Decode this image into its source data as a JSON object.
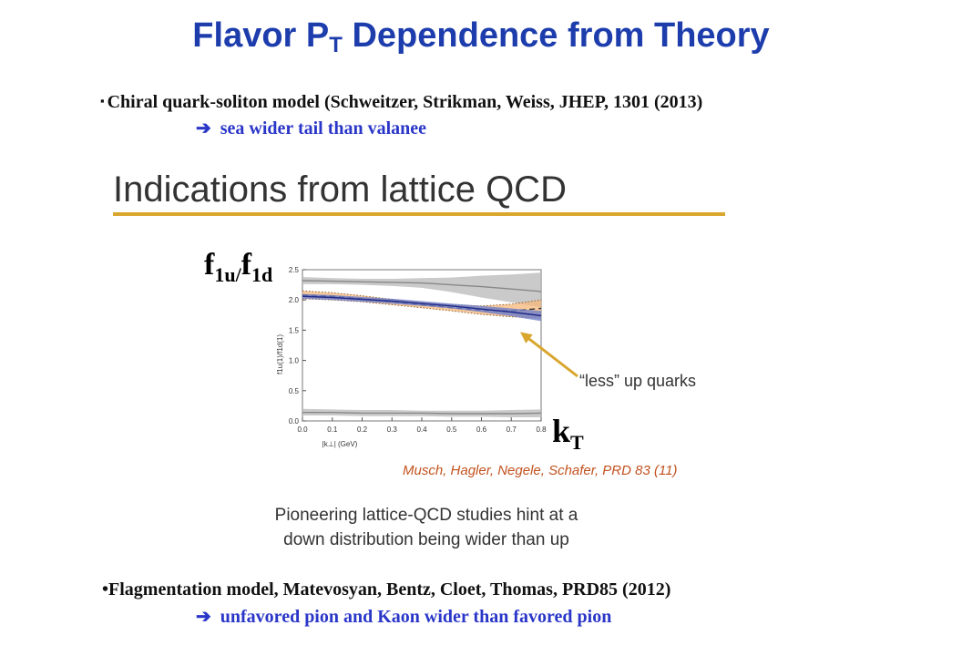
{
  "slide": {
    "title_main": "Flavor P",
    "title_sub": "T",
    "title_rest": " Dependence from Theory",
    "bullet1": "Chiral quark-soliton model (Schweitzer, Strikman, Weiss, JHEP, 1301 (2013)",
    "bullet1_marker": "▪",
    "arrow_glyph": "➔",
    "arrow1_text": "sea wider tail than valanee",
    "section_heading": "Indications from lattice QCD",
    "ratio_f1": "f",
    "ratio_sub1": "1u/",
    "ratio_f2": "f",
    "ratio_sub2": "1d",
    "kt_main": "k",
    "kt_sub": "T",
    "annotation": "“less” up quarks",
    "citation": "Musch, Hagler, Negele, Schafer, PRD 83 (11)",
    "caption_line1": "Pioneering lattice-QCD studies hint at a",
    "caption_line2": "down distribution being wider than up",
    "bullet2_marker": "•",
    "bullet2": "Flagmentation model, Matevosyan, Bentz, Cloet, Thomas, PRD85 (2012)",
    "arrow2_text": "unfavored pion and Kaon wider than favored pion"
  },
  "colors": {
    "title": "#1d3dad",
    "arrow_text": "#2a36c8",
    "gold": "#d9a62e",
    "citation": "#c2521e",
    "orange_band": "#f4b77a",
    "blue_band": "#6f7fc9",
    "gray_band": "#b8b8b8"
  },
  "chart_data": {
    "type": "line",
    "xlabel": "|k⊥| (GeV)",
    "ylabel": "f1u(1)/f1d(1)",
    "xlim": [
      0,
      0.8
    ],
    "ylim": [
      0,
      2.5
    ],
    "xticks": [
      "0.0",
      "0.1",
      "0.2",
      "0.3",
      "0.4",
      "0.5",
      "0.6",
      "0.7",
      "0.8"
    ],
    "yticks": [
      "0.0",
      "0.5",
      "1.0",
      "1.5",
      "2.0",
      "2.5"
    ],
    "series": [
      {
        "style": "orange-band",
        "x": [
          0.0,
          0.1,
          0.2,
          0.3,
          0.4,
          0.5,
          0.6,
          0.7,
          0.8
        ],
        "center": [
          2.08,
          2.06,
          2.02,
          1.97,
          1.92,
          1.87,
          1.83,
          1.82,
          1.86
        ],
        "upper": [
          2.15,
          2.12,
          2.07,
          2.01,
          1.96,
          1.92,
          1.9,
          1.93,
          2.0
        ],
        "lower": [
          2.02,
          2.0,
          1.97,
          1.92,
          1.87,
          1.82,
          1.76,
          1.72,
          1.7
        ]
      },
      {
        "style": "blue-band",
        "x": [
          0.0,
          0.1,
          0.2,
          0.3,
          0.4,
          0.5,
          0.6,
          0.7,
          0.8
        ],
        "center": [
          2.06,
          2.04,
          2.01,
          1.98,
          1.94,
          1.9,
          1.85,
          1.8,
          1.74
        ],
        "upper": [
          2.1,
          2.08,
          2.05,
          2.02,
          1.98,
          1.94,
          1.9,
          1.86,
          1.82
        ],
        "lower": [
          2.02,
          2.0,
          1.97,
          1.94,
          1.9,
          1.86,
          1.8,
          1.73,
          1.65
        ]
      },
      {
        "style": "gray-band-top",
        "x": [
          0.0,
          0.1,
          0.2,
          0.3,
          0.4,
          0.5,
          0.6,
          0.7,
          0.8
        ],
        "center": [
          2.32,
          2.31,
          2.3,
          2.29,
          2.28,
          2.25,
          2.22,
          2.18,
          2.14
        ],
        "upper": [
          2.38,
          2.36,
          2.35,
          2.35,
          2.36,
          2.37,
          2.4,
          2.42,
          2.45
        ],
        "lower": [
          2.26,
          2.26,
          2.25,
          2.23,
          2.2,
          2.13,
          2.04,
          1.96,
          1.88
        ]
      },
      {
        "style": "gray-band-bottom",
        "x": [
          0.0,
          0.1,
          0.2,
          0.3,
          0.4,
          0.5,
          0.6,
          0.7,
          0.8
        ],
        "center": [
          0.14,
          0.14,
          0.13,
          0.13,
          0.13,
          0.12,
          0.12,
          0.12,
          0.13
        ],
        "upper": [
          0.2,
          0.19,
          0.18,
          0.18,
          0.17,
          0.17,
          0.17,
          0.18,
          0.19
        ],
        "lower": [
          0.09,
          0.09,
          0.08,
          0.08,
          0.08,
          0.07,
          0.07,
          0.06,
          0.06
        ]
      }
    ],
    "annotation_arrow_target": {
      "x": 0.73,
      "y": 1.47
    }
  }
}
